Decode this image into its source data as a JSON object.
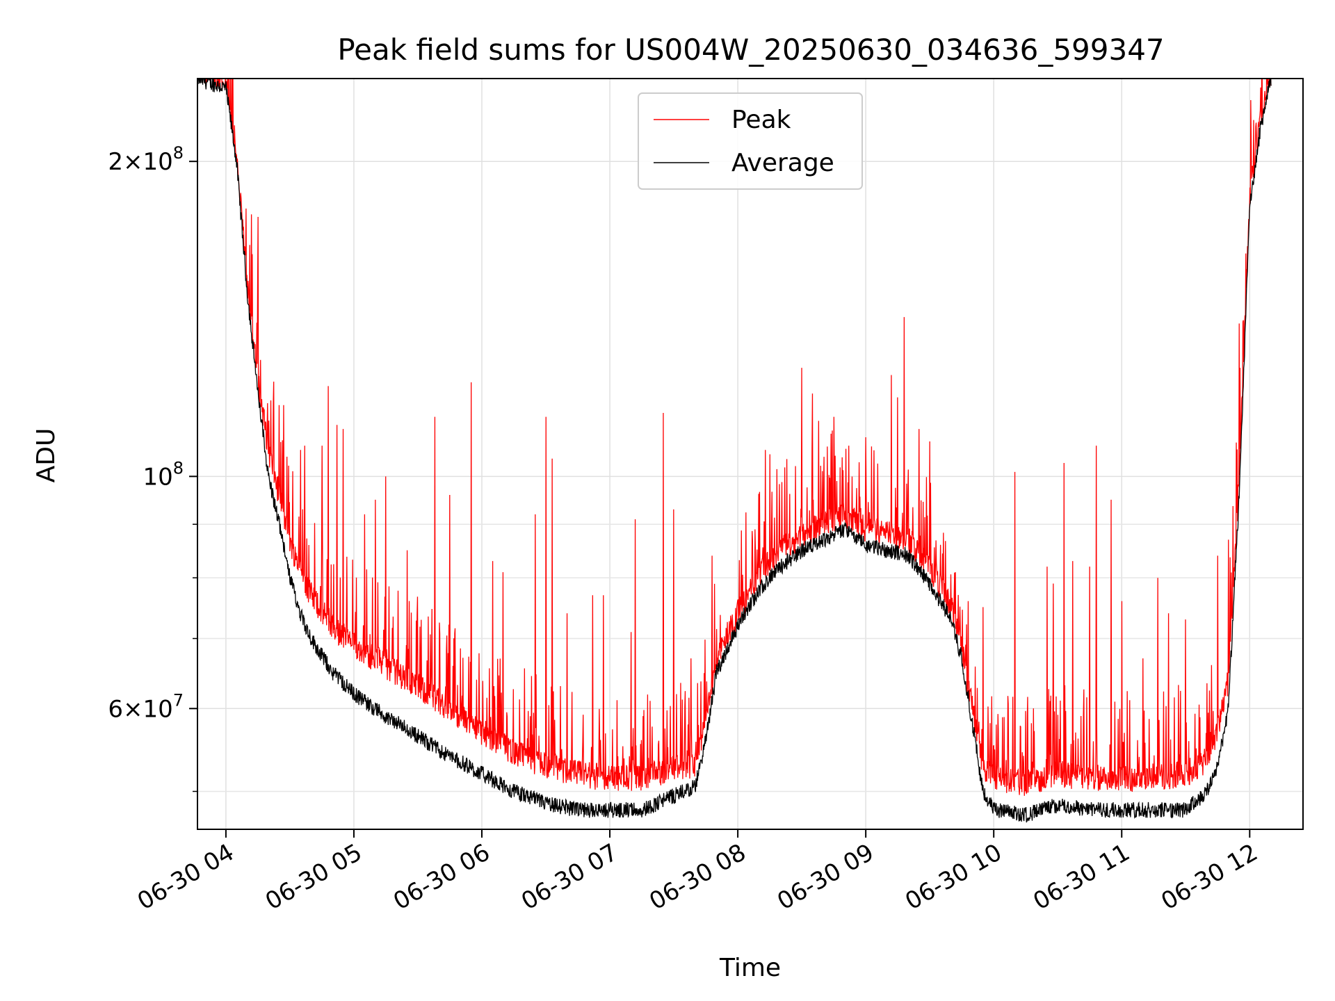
{
  "chart_data": {
    "type": "line",
    "title": "Peak field sums for US004W_20250630_034636_599347",
    "xlabel": "Time",
    "ylabel": "ADU",
    "yscale": "log",
    "ylim": [
      46000000,
      240000000
    ],
    "xlim": [
      "06-30 03:46:40",
      "06-30 12:25:00"
    ],
    "grid": true,
    "legend": "upper center",
    "x_ticks": [
      {
        "t": "06-30 04:00",
        "label": "06-30 04"
      },
      {
        "t": "06-30 05:00",
        "label": "06-30 05"
      },
      {
        "t": "06-30 06:00",
        "label": "06-30 06"
      },
      {
        "t": "06-30 07:00",
        "label": "06-30 07"
      },
      {
        "t": "06-30 08:00",
        "label": "06-30 08"
      },
      {
        "t": "06-30 09:00",
        "label": "06-30 09"
      },
      {
        "t": "06-30 10:00",
        "label": "06-30 10"
      },
      {
        "t": "06-30 11:00",
        "label": "06-30 11"
      },
      {
        "t": "06-30 12:00",
        "label": "06-30 12"
      }
    ],
    "y_major_ticks": [
      {
        "value": 60000000,
        "mant": "6",
        "exp": "7"
      },
      {
        "value": 100000000,
        "mant": "",
        "exp": "8"
      },
      {
        "value": 200000000,
        "mant": "2",
        "exp": "8"
      }
    ],
    "y_minor_ticks": [
      50000000,
      70000000,
      80000000,
      90000000
    ],
    "series": [
      {
        "name": "Average",
        "color": "#000000",
        "x": [
          "06-30 03:46:36",
          "06-30 04:00",
          "06-30 04:05",
          "06-30 04:10",
          "06-30 04:15",
          "06-30 04:20",
          "06-30 04:25",
          "06-30 04:30",
          "06-30 04:35",
          "06-30 04:40",
          "06-30 04:50",
          "06-30 05:00",
          "06-30 05:15",
          "06-30 05:30",
          "06-30 05:45",
          "06-30 06:00",
          "06-30 06:15",
          "06-30 06:30",
          "06-30 06:45",
          "06-30 07:00",
          "06-30 07:15",
          "06-30 07:30",
          "06-30 07:40",
          "06-30 07:45",
          "06-30 07:50",
          "06-30 08:00",
          "06-30 08:10",
          "06-30 08:20",
          "06-30 08:30",
          "06-30 08:40",
          "06-30 08:50",
          "06-30 09:00",
          "06-30 09:10",
          "06-30 09:20",
          "06-30 09:30",
          "06-30 09:40",
          "06-30 09:45",
          "06-30 09:50",
          "06-30 09:55",
          "06-30 10:00",
          "06-30 10:15",
          "06-30 10:30",
          "06-30 10:45",
          "06-30 11:00",
          "06-30 11:15",
          "06-30 11:30",
          "06-30 11:40",
          "06-30 11:45",
          "06-30 11:50",
          "06-30 11:55",
          "06-30 12:00",
          "06-30 12:05",
          "06-30 12:10"
        ],
        "y": [
          240000000,
          235000000,
          200000000,
          150000000,
          120000000,
          100000000,
          90000000,
          80000000,
          74000000,
          70000000,
          65000000,
          62000000,
          59000000,
          56500000,
          54000000,
          52000000,
          50000000,
          48700000,
          48000000,
          48000000,
          48000000,
          49500000,
          50500000,
          56000000,
          65000000,
          72000000,
          78000000,
          82000000,
          85000000,
          87000000,
          89000000,
          86000000,
          85000000,
          84000000,
          79000000,
          73000000,
          67000000,
          58000000,
          50000000,
          48000000,
          47500000,
          48500000,
          48000000,
          48000000,
          48000000,
          48000000,
          50000000,
          53000000,
          60000000,
          95000000,
          180000000,
          215000000,
          240000000
        ]
      },
      {
        "name": "Peak",
        "color": "#ff0000",
        "x": [
          "06-30 03:46:36",
          "06-30 04:00",
          "06-30 04:05",
          "06-30 04:10",
          "06-30 04:15",
          "06-30 04:20",
          "06-30 04:25",
          "06-30 04:30",
          "06-30 04:35",
          "06-30 04:40",
          "06-30 04:50",
          "06-30 05:00",
          "06-30 05:15",
          "06-30 05:30",
          "06-30 05:45",
          "06-30 06:00",
          "06-30 06:15",
          "06-30 06:30",
          "06-30 06:45",
          "06-30 07:00",
          "06-30 07:15",
          "06-30 07:30",
          "06-30 07:40",
          "06-30 07:45",
          "06-30 07:50",
          "06-30 08:00",
          "06-30 08:10",
          "06-30 08:20",
          "06-30 08:30",
          "06-30 08:40",
          "06-30 08:50",
          "06-30 09:00",
          "06-30 09:10",
          "06-30 09:20",
          "06-30 09:30",
          "06-30 09:40",
          "06-30 09:45",
          "06-30 09:50",
          "06-30 09:55",
          "06-30 10:00",
          "06-30 10:15",
          "06-30 10:30",
          "06-30 10:45",
          "06-30 11:00",
          "06-30 11:15",
          "06-30 11:30",
          "06-30 11:40",
          "06-30 11:45",
          "06-30 11:50",
          "06-30 11:55",
          "06-30 12:00",
          "06-30 12:05",
          "06-30 12:10"
        ],
        "y": [
          240000000,
          235000000,
          202000000,
          153000000,
          124000000,
          106000000,
          96000000,
          87000000,
          81000000,
          77000000,
          72000000,
          69000000,
          66000000,
          63000000,
          60000000,
          57000000,
          54500000,
          53000000,
          52000000,
          51500000,
          51500000,
          52500000,
          53000000,
          58000000,
          67000000,
          74000000,
          80500000,
          85000000,
          88000000,
          90000000,
          92000000,
          89000000,
          88000000,
          87000000,
          82000000,
          75000000,
          69000000,
          60000000,
          53000000,
          51500000,
          51000000,
          52000000,
          51500000,
          51500000,
          51500000,
          52000000,
          53500000,
          57000000,
          64000000,
          99000000,
          185000000,
          218000000,
          240000000
        ]
      }
    ],
    "peak_spikes": [
      {
        "t": "06-30 04:12",
        "y": 178000000
      },
      {
        "t": "06-30 04:15",
        "y": 177000000
      },
      {
        "t": "06-30 04:25",
        "y": 117000000
      },
      {
        "t": "06-30 04:27",
        "y": 117000000
      },
      {
        "t": "06-30 04:35",
        "y": 106000000
      },
      {
        "t": "06-30 04:37",
        "y": 107000000
      },
      {
        "t": "06-30 04:45",
        "y": 107000000
      },
      {
        "t": "06-30 04:48",
        "y": 122000000
      },
      {
        "t": "06-30 04:52",
        "y": 112000000
      },
      {
        "t": "06-30 04:55",
        "y": 111000000
      },
      {
        "t": "06-30 05:05",
        "y": 92000000
      },
      {
        "t": "06-30 05:10",
        "y": 95000000
      },
      {
        "t": "06-30 05:15",
        "y": 100000000
      },
      {
        "t": "06-30 05:25",
        "y": 85000000
      },
      {
        "t": "06-30 05:38",
        "y": 114000000
      },
      {
        "t": "06-30 05:45",
        "y": 96000000
      },
      {
        "t": "06-30 05:55",
        "y": 123000000
      },
      {
        "t": "06-30 06:05",
        "y": 83000000
      },
      {
        "t": "06-30 06:10",
        "y": 81000000
      },
      {
        "t": "06-30 06:25",
        "y": 92000000
      },
      {
        "t": "06-30 06:30",
        "y": 114000000
      },
      {
        "t": "06-30 06:33",
        "y": 104000000
      },
      {
        "t": "06-30 06:40",
        "y": 74000000
      },
      {
        "t": "06-30 06:52",
        "y": 77000000
      },
      {
        "t": "06-30 06:57",
        "y": 77000000
      },
      {
        "t": "06-30 07:10",
        "y": 71000000
      },
      {
        "t": "06-30 07:12",
        "y": 91000000
      },
      {
        "t": "06-30 07:25",
        "y": 115000000
      },
      {
        "t": "06-30 07:30",
        "y": 93000000
      },
      {
        "t": "06-30 07:38",
        "y": 67000000
      },
      {
        "t": "06-30 07:48",
        "y": 84000000
      },
      {
        "t": "06-30 08:08",
        "y": 89000000
      },
      {
        "t": "06-30 08:13",
        "y": 106000000
      },
      {
        "t": "06-30 08:15",
        "y": 105000000
      },
      {
        "t": "06-30 08:22",
        "y": 102000000
      },
      {
        "t": "06-30 08:30",
        "y": 127000000
      },
      {
        "t": "06-30 08:35",
        "y": 120000000
      },
      {
        "t": "06-30 08:38",
        "y": 113000000
      },
      {
        "t": "06-30 08:45",
        "y": 114000000
      },
      {
        "t": "06-30 08:48",
        "y": 102000000
      },
      {
        "t": "06-30 08:52",
        "y": 107000000
      },
      {
        "t": "06-30 09:00",
        "y": 109000000
      },
      {
        "t": "06-30 09:12",
        "y": 125000000
      },
      {
        "t": "06-30 09:15",
        "y": 119000000
      },
      {
        "t": "06-30 09:18",
        "y": 142000000
      },
      {
        "t": "06-30 09:25",
        "y": 111000000
      },
      {
        "t": "06-30 09:30",
        "y": 108000000
      },
      {
        "t": "06-30 09:42",
        "y": 81000000
      },
      {
        "t": "06-30 09:48",
        "y": 76000000
      },
      {
        "t": "06-30 09:55",
        "y": 75000000
      },
      {
        "t": "06-30 10:10",
        "y": 101000000
      },
      {
        "t": "06-30 10:25",
        "y": 82000000
      },
      {
        "t": "06-30 10:28",
        "y": 79000000
      },
      {
        "t": "06-30 10:33",
        "y": 103000000
      },
      {
        "t": "06-30 10:37",
        "y": 83000000
      },
      {
        "t": "06-30 10:45",
        "y": 82000000
      },
      {
        "t": "06-30 10:48",
        "y": 107000000
      },
      {
        "t": "06-30 10:55",
        "y": 95000000
      },
      {
        "t": "06-30 11:00",
        "y": 76000000
      },
      {
        "t": "06-30 11:10",
        "y": 67000000
      },
      {
        "t": "06-30 11:17",
        "y": 80000000
      },
      {
        "t": "06-30 11:22",
        "y": 74000000
      },
      {
        "t": "06-30 11:30",
        "y": 73000000
      },
      {
        "t": "06-30 11:45",
        "y": 84000000
      },
      {
        "t": "06-30 11:50",
        "y": 87000000
      },
      {
        "t": "06-30 11:55",
        "y": 140000000
      },
      {
        "t": "06-30 11:57",
        "y": 141000000
      },
      {
        "t": "06-30 12:02",
        "y": 182000000
      }
    ]
  }
}
